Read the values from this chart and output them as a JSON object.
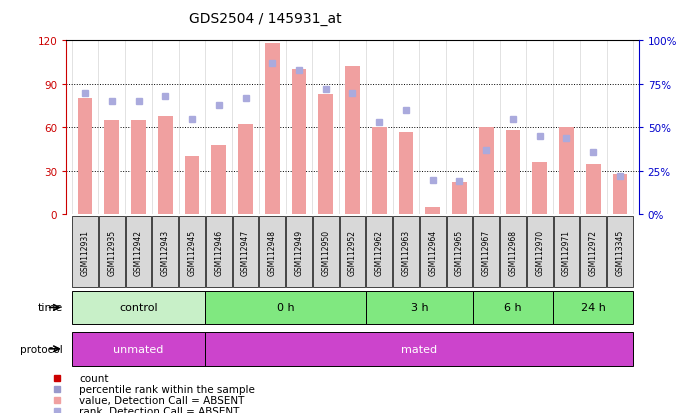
{
  "title": "GDS2504 / 145931_at",
  "samples": [
    "GSM112931",
    "GSM112935",
    "GSM112942",
    "GSM112943",
    "GSM112945",
    "GSM112946",
    "GSM112947",
    "GSM112948",
    "GSM112949",
    "GSM112950",
    "GSM112952",
    "GSM112962",
    "GSM112963",
    "GSM112964",
    "GSM112965",
    "GSM112967",
    "GSM112968",
    "GSM112970",
    "GSM112971",
    "GSM112972",
    "GSM113345"
  ],
  "values": [
    80,
    65,
    65,
    68,
    40,
    48,
    62,
    118,
    100,
    83,
    102,
    60,
    57,
    5,
    22,
    60,
    58,
    36,
    60,
    35,
    28
  ],
  "percentile_ranks": [
    70,
    65,
    65,
    68,
    55,
    63,
    67,
    87,
    83,
    72,
    70,
    53,
    60,
    20,
    19,
    37,
    55,
    45,
    44,
    36,
    22
  ],
  "absent_flags": [
    true,
    true,
    true,
    true,
    true,
    true,
    true,
    true,
    true,
    true,
    true,
    true,
    true,
    true,
    true,
    true,
    true,
    true,
    true,
    true,
    true
  ],
  "time_groups": [
    {
      "label": "control",
      "start": 0,
      "end": 5,
      "color": "#c8f0c8"
    },
    {
      "label": "0 h",
      "start": 5,
      "end": 11,
      "color": "#80e880"
    },
    {
      "label": "3 h",
      "start": 11,
      "end": 15,
      "color": "#80e880"
    },
    {
      "label": "6 h",
      "start": 15,
      "end": 18,
      "color": "#80e880"
    },
    {
      "label": "24 h",
      "start": 18,
      "end": 21,
      "color": "#80e880"
    }
  ],
  "protocol_groups": [
    {
      "label": "unmated",
      "start": 0,
      "end": 5,
      "color": "#cc44cc"
    },
    {
      "label": "mated",
      "start": 5,
      "end": 21,
      "color": "#cc44cc"
    }
  ],
  "ylim_left": [
    0,
    120
  ],
  "ylim_right": [
    0,
    100
  ],
  "left_yticks": [
    0,
    30,
    60,
    90,
    120
  ],
  "right_yticks": [
    0,
    25,
    50,
    75,
    100
  ],
  "bar_absent_color": "#f0a0a0",
  "rank_absent_color": "#aaaadd",
  "bg_color": "#ffffff",
  "left_axis_color": "#cc0000",
  "right_axis_color": "#0000cc",
  "legend_items": [
    {
      "color": "#cc0000",
      "label": "count"
    },
    {
      "color": "#9999cc",
      "label": "percentile rank within the sample"
    },
    {
      "color": "#f0a0a0",
      "label": "value, Detection Call = ABSENT"
    },
    {
      "color": "#aaaadd",
      "label": "rank, Detection Call = ABSENT"
    }
  ]
}
